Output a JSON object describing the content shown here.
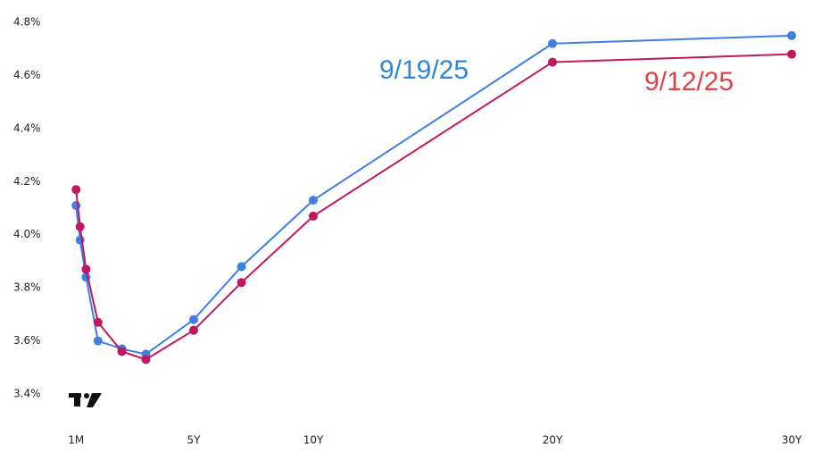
{
  "chart_data": {
    "type": "line",
    "x": [
      0.0833,
      0.25,
      0.5,
      1,
      2,
      3,
      5,
      7,
      10,
      20,
      30
    ],
    "series": [
      {
        "name": "9/19/25",
        "color": "#3d7fe3",
        "label_color": "#2f86d6",
        "values": [
          4.11,
          3.98,
          3.84,
          3.6,
          3.57,
          3.55,
          3.68,
          3.88,
          4.13,
          4.72,
          4.75
        ]
      },
      {
        "name": "9/12/25",
        "color": "#c0175e",
        "label_color": "#e2434b",
        "values": [
          4.17,
          4.03,
          3.87,
          3.67,
          3.56,
          3.53,
          3.64,
          3.82,
          4.07,
          4.65,
          4.68
        ]
      }
    ],
    "xlim": [
      0,
      30
    ],
    "xticks": [
      {
        "value": 0.0833,
        "label": "1M"
      },
      {
        "value": 5,
        "label": "5Y"
      },
      {
        "value": 10,
        "label": "10Y"
      },
      {
        "value": 20,
        "label": "20Y"
      },
      {
        "value": 30,
        "label": "30Y"
      }
    ],
    "ylim": [
      3.4,
      4.8
    ],
    "yticks": [
      {
        "value": 3.4,
        "label": "3.4%"
      },
      {
        "value": 3.6,
        "label": "3.6%"
      },
      {
        "value": 3.8,
        "label": "3.8%"
      },
      {
        "value": 4.0,
        "label": "4.0%"
      },
      {
        "value": 4.2,
        "label": "4.2%"
      },
      {
        "value": 4.4,
        "label": "4.4%"
      },
      {
        "value": 4.6,
        "label": "4.6%"
      },
      {
        "value": 4.8,
        "label": "4.8%"
      }
    ],
    "grid": false
  }
}
